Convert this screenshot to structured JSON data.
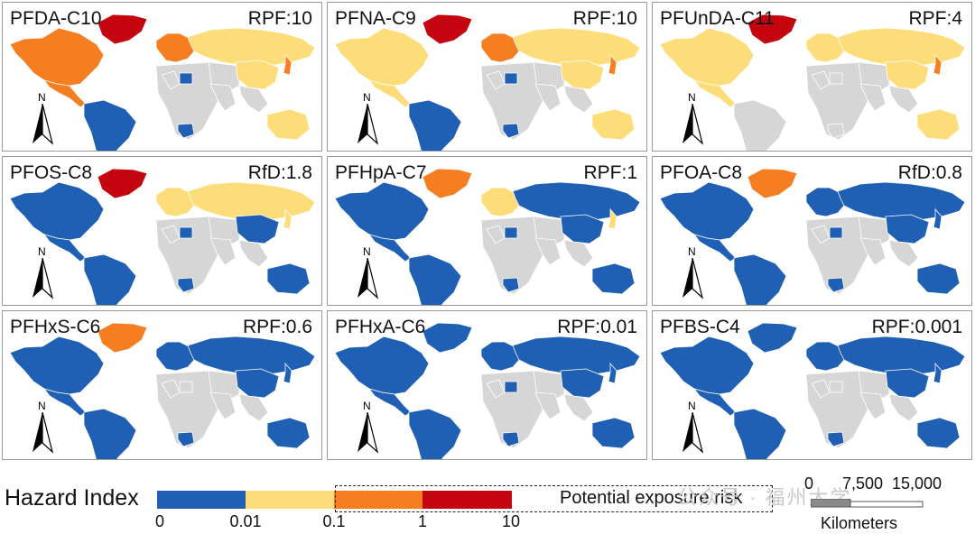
{
  "colors": {
    "lt_0_01": "#1f5fb4",
    "r_0_01_0_1": "#fddc7a",
    "r_0_1_1": "#f57e20",
    "r_1_10": "#c4050f",
    "no_data": "#d6d6d6"
  },
  "panels": [
    {
      "title": "PFDA-C10",
      "rpf": "RPF:10",
      "north": "N",
      "regions": {
        "greenland": "r_1_10",
        "north_america": "r_0_1_1",
        "europe": "r_0_1_1",
        "russia": "r_0_01_0_1",
        "east_asia": "r_0_01_0_1",
        "japan": "r_0_1_1",
        "south_america": "lt_0_01",
        "south_africa": "lt_0_01",
        "north_africa_spot": "lt_0_01",
        "australia": "r_0_01_0_1",
        "central_america": "r_0_1_1"
      }
    },
    {
      "title": "PFNA-C9",
      "rpf": "RPF:10",
      "north": "N",
      "regions": {
        "greenland": "r_1_10",
        "north_america": "r_0_01_0_1",
        "europe": "r_0_1_1",
        "russia": "r_0_01_0_1",
        "east_asia": "r_0_01_0_1",
        "japan": "r_0_1_1",
        "south_america": "lt_0_01",
        "south_africa": "lt_0_01",
        "north_africa_spot": "lt_0_01",
        "australia": "r_0_01_0_1",
        "central_america": "r_0_01_0_1"
      }
    },
    {
      "title": "PFUnDA-C11",
      "rpf": "RPF:4",
      "north": "N",
      "regions": {
        "greenland": "r_1_10",
        "north_america": "r_0_01_0_1",
        "europe": "r_0_01_0_1",
        "russia": "r_0_01_0_1",
        "east_asia": "r_0_01_0_1",
        "japan": "r_0_1_1",
        "south_america": "no_data",
        "south_africa": "no_data",
        "north_africa_spot": "no_data",
        "australia": "r_0_01_0_1",
        "central_america": "r_0_01_0_1"
      }
    },
    {
      "title": "PFOS-C8",
      "rpf": "RfD:1.8",
      "north": "N",
      "regions": {
        "greenland": "r_1_10",
        "north_america": "lt_0_01",
        "europe": "r_0_01_0_1",
        "russia": "r_0_01_0_1",
        "east_asia": "lt_0_01",
        "japan": "r_0_01_0_1",
        "south_america": "lt_0_01",
        "south_africa": "lt_0_01",
        "north_africa_spot": "lt_0_01",
        "australia": "lt_0_01",
        "central_america": "lt_0_01"
      }
    },
    {
      "title": "PFHpA-C7",
      "rpf": "RPF:1",
      "north": "N",
      "regions": {
        "greenland": "r_0_1_1",
        "north_america": "lt_0_01",
        "europe": "r_0_01_0_1",
        "russia": "lt_0_01",
        "east_asia": "lt_0_01",
        "japan": "r_0_01_0_1",
        "south_america": "lt_0_01",
        "south_africa": "lt_0_01",
        "north_africa_spot": "lt_0_01",
        "australia": "lt_0_01",
        "central_america": "lt_0_01"
      }
    },
    {
      "title": "PFOA-C8",
      "rpf": "RfD:0.8",
      "north": "N",
      "regions": {
        "greenland": "r_0_1_1",
        "north_america": "lt_0_01",
        "europe": "lt_0_01",
        "russia": "lt_0_01",
        "east_asia": "lt_0_01",
        "japan": "lt_0_01",
        "south_america": "lt_0_01",
        "south_africa": "lt_0_01",
        "north_africa_spot": "lt_0_01",
        "australia": "lt_0_01",
        "central_america": "lt_0_01"
      }
    },
    {
      "title": "PFHxS-C6",
      "rpf": "RPF:0.6",
      "north": "N",
      "regions": {
        "greenland": "r_0_1_1",
        "north_america": "lt_0_01",
        "europe": "lt_0_01",
        "russia": "lt_0_01",
        "east_asia": "lt_0_01",
        "japan": "lt_0_01",
        "south_america": "lt_0_01",
        "south_africa": "lt_0_01",
        "north_africa_spot": "no_data",
        "australia": "lt_0_01",
        "central_america": "lt_0_01"
      }
    },
    {
      "title": "PFHxA-C6",
      "rpf": "RPF:0.01",
      "north": "N",
      "regions": {
        "greenland": "lt_0_01",
        "north_america": "lt_0_01",
        "europe": "lt_0_01",
        "russia": "lt_0_01",
        "east_asia": "lt_0_01",
        "japan": "lt_0_01",
        "south_america": "lt_0_01",
        "south_africa": "lt_0_01",
        "north_africa_spot": "lt_0_01",
        "australia": "lt_0_01",
        "central_america": "lt_0_01"
      }
    },
    {
      "title": "PFBS-C4",
      "rpf": "RPF:0.001",
      "north": "N",
      "regions": {
        "greenland": "lt_0_01",
        "north_america": "lt_0_01",
        "europe": "lt_0_01",
        "russia": "lt_0_01",
        "east_asia": "lt_0_01",
        "japan": "lt_0_01",
        "south_america": "lt_0_01",
        "south_africa": "lt_0_01",
        "north_africa_spot": "no_data",
        "australia": "lt_0_01",
        "central_america": "lt_0_01"
      }
    }
  ],
  "legend": {
    "title": "Hazard Index",
    "ticks": [
      "0",
      "0.01",
      "0.1",
      "1",
      "10"
    ],
    "risk_label": "Potential exposure risk",
    "bins": [
      "lt_0_01",
      "r_0_01_0_1",
      "r_0_1_1",
      "r_1_10"
    ]
  },
  "scale": {
    "labels": [
      "0",
      "7,500",
      "15,000"
    ],
    "unit": "Kilometers"
  },
  "watermark": "公众号 · 福州大学"
}
